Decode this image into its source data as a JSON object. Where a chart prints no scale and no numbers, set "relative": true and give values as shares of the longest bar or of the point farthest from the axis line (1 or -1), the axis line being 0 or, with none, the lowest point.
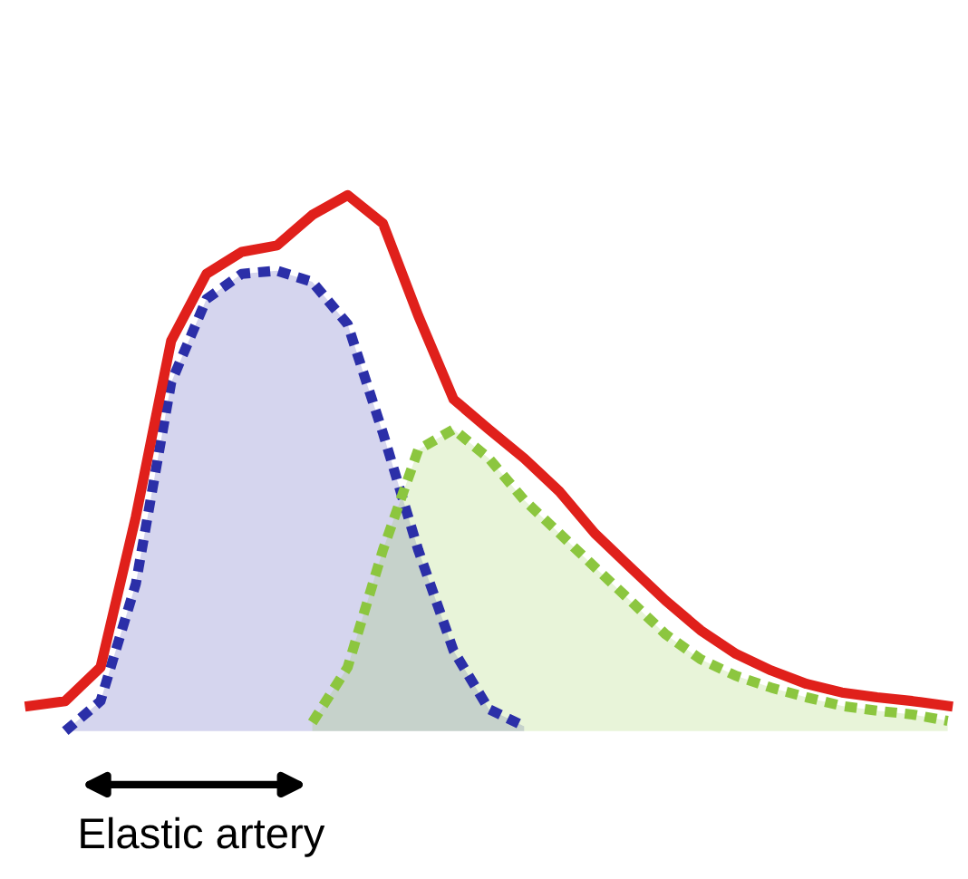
{
  "chart_data": {
    "type": "area",
    "relative": true,
    "categories": [
      null,
      null,
      null,
      null,
      null,
      null,
      null,
      null,
      null,
      null,
      null,
      null,
      null,
      null,
      null,
      null,
      null,
      null,
      null,
      null,
      null,
      null,
      null,
      null,
      null,
      null,
      null
    ],
    "series": [
      {
        "type": "line",
        "color": "#e0201b",
        "line_style": "solid",
        "values": [
          0.047,
          0.056,
          0.119,
          0.4,
          0.728,
          0.853,
          0.894,
          0.906,
          0.963,
          1.0,
          0.947,
          0.775,
          0.619,
          0.563,
          0.509,
          0.447,
          0.369,
          0.306,
          0.244,
          0.188,
          0.144,
          0.113,
          0.088,
          0.072,
          0.063,
          0.056,
          0.047
        ]
      },
      {
        "color": "#2b2fa8",
        "line_style": "dotted",
        "values": [
          null,
          0,
          0.056,
          0.275,
          0.65,
          0.806,
          0.853,
          0.859,
          0.838,
          0.759,
          0.556,
          0.338,
          0.15,
          0.041,
          0.009,
          null,
          null,
          null,
          null,
          null,
          null,
          null,
          null,
          null,
          null,
          null,
          null
        ]
      },
      {
        "color": "#8cc63f",
        "line_style": "dotted",
        "values": [
          null,
          null,
          null,
          null,
          null,
          null,
          null,
          null,
          0.016,
          0.119,
          0.338,
          0.525,
          0.563,
          0.509,
          0.431,
          0.369,
          0.306,
          0.244,
          0.181,
          0.134,
          0.103,
          0.081,
          0.063,
          0.047,
          0.038,
          0.031,
          0.019
        ]
      }
    ],
    "annotations": [
      "Elastic artery"
    ]
  }
}
